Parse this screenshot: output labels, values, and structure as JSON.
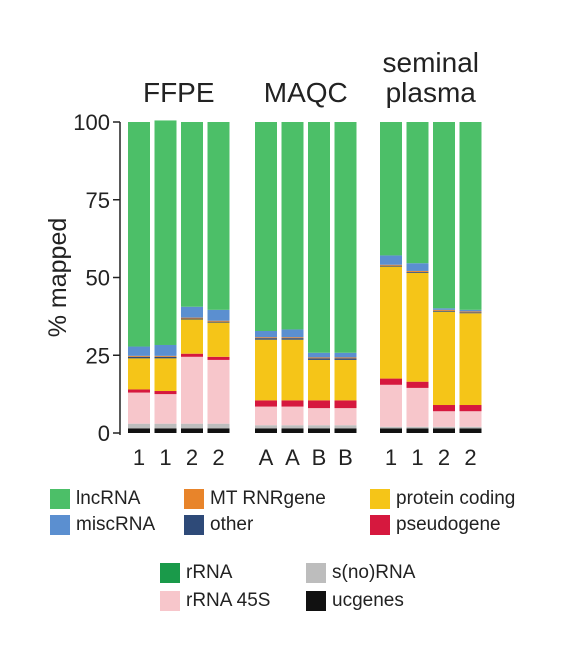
{
  "chart_data": {
    "type": "bar",
    "stacked": true,
    "ylabel": "% mapped",
    "ylim": [
      0,
      100
    ],
    "yticks": [
      "0",
      "25",
      "50",
      "75",
      "100"
    ],
    "groups": [
      {
        "title_lines": [
          "FFPE"
        ],
        "categories": [
          "1",
          "1",
          "2",
          "2"
        ]
      },
      {
        "title_lines": [
          "MAQC"
        ],
        "categories": [
          "A",
          "A",
          "B",
          "B"
        ]
      },
      {
        "title_lines": [
          "seminal",
          "plasma"
        ],
        "categories": [
          "1",
          "1",
          "2",
          "2"
        ]
      }
    ],
    "series": [
      {
        "name": "ucgenes",
        "color": "#111111",
        "values": [
          [
            1.5,
            1.5,
            1.5,
            1.5
          ],
          [
            1.5,
            1.5,
            1.5,
            1.5
          ],
          [
            1.5,
            1.5,
            1.5,
            1.5
          ]
        ]
      },
      {
        "name": "s(no)RNA",
        "color": "#bdbdbd",
        "values": [
          [
            1.5,
            1.5,
            1.5,
            1.5
          ],
          [
            1,
            1,
            1,
            1
          ],
          [
            0.5,
            0.5,
            0.5,
            0.5
          ]
        ]
      },
      {
        "name": "rRNA 45S",
        "color": "#f7c6cb",
        "values": [
          [
            10,
            9.5,
            21.5,
            20.5
          ],
          [
            6,
            6,
            5.5,
            5.5
          ],
          [
            13.5,
            12.5,
            5,
            5
          ]
        ]
      },
      {
        "name": "pseudogene",
        "color": "#d6183e",
        "values": [
          [
            1,
            1,
            1,
            1
          ],
          [
            2,
            2,
            2.5,
            2.5
          ],
          [
            2,
            2,
            2,
            2
          ]
        ]
      },
      {
        "name": "protein coding",
        "color": "#f5c518",
        "values": [
          [
            10,
            10.5,
            11,
            11
          ],
          [
            19.5,
            19.5,
            13,
            13
          ],
          [
            36,
            35,
            30,
            29.5
          ]
        ]
      },
      {
        "name": "other",
        "color": "#2e4a78",
        "values": [
          [
            0.5,
            0.5,
            0.3,
            0.3
          ],
          [
            0.5,
            0.5,
            0.5,
            0.5
          ],
          [
            0.3,
            0.3,
            0.3,
            0.3
          ]
        ]
      },
      {
        "name": "MT RNRgene",
        "color": "#e8842a",
        "values": [
          [
            0.3,
            0.3,
            0.3,
            0.3
          ],
          [
            0.3,
            0.3,
            0.3,
            0.3
          ],
          [
            0.3,
            0.3,
            0.3,
            0.3
          ]
        ]
      },
      {
        "name": "miscRNA",
        "color": "#5b8fd0",
        "values": [
          [
            3,
            3.5,
            3.5,
            3.5
          ],
          [
            2,
            2.5,
            1.5,
            1.5
          ],
          [
            3,
            2.5,
            0.5,
            0.5
          ]
        ]
      },
      {
        "name": "lncRNA",
        "color": "#4cbf68",
        "values": [
          [
            72.2,
            72.2,
            59.4,
            60.4
          ],
          [
            67.2,
            66.7,
            74.2,
            74.2
          ],
          [
            42.9,
            45.4,
            59.9,
            60.4
          ]
        ]
      },
      {
        "name": "rRNA",
        "color": "#1a9a4a",
        "values": [
          [
            0,
            0,
            0,
            0
          ],
          [
            0,
            0,
            0,
            0
          ],
          [
            0,
            0,
            0,
            0
          ]
        ]
      }
    ]
  },
  "legend": {
    "lncRNA": {
      "label": "lncRNA",
      "color": "#4cbf68"
    },
    "miscRNA": {
      "label": "miscRNA",
      "color": "#5b8fd0"
    },
    "mt": {
      "label": "MT RNRgene",
      "color": "#e8842a"
    },
    "other": {
      "label": "other",
      "color": "#2e4a78"
    },
    "protein": {
      "label": "protein coding",
      "color": "#f5c518"
    },
    "pseudogene": {
      "label": "pseudogene",
      "color": "#d6183e"
    },
    "rrna": {
      "label": "rRNA",
      "color": "#1a9a4a"
    },
    "rrna45": {
      "label": "rRNA 45S",
      "color": "#f7c6cb"
    },
    "snorna": {
      "label": "s(no)RNA",
      "color": "#bdbdbd"
    },
    "ucgenes": {
      "label": "ucgenes",
      "color": "#111111"
    }
  }
}
